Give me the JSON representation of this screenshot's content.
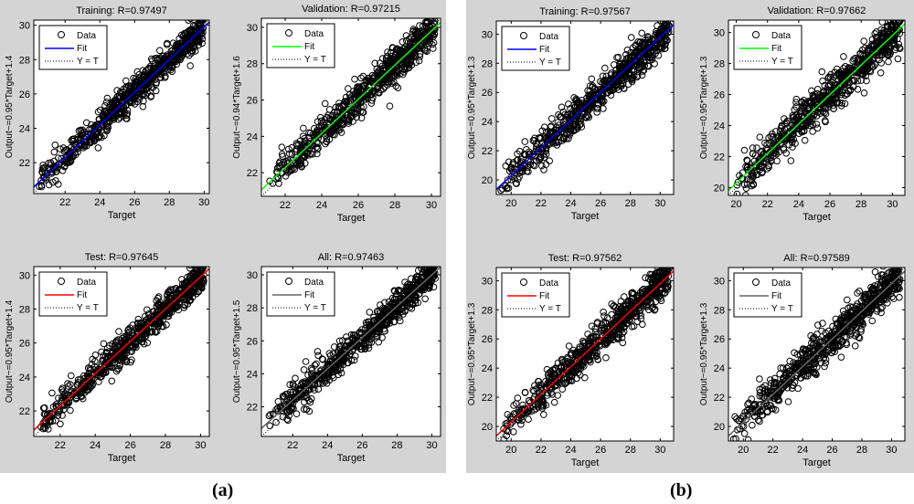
{
  "figure_labels": [
    "(a)",
    "(b)"
  ],
  "chart_data": [
    {
      "group": "(a)",
      "type": "scatter",
      "title": "Training: R=0.97497",
      "xlabel": "Target",
      "ylabel": "Output~=0.95*Target+1.4",
      "fit": {
        "slope": 0.95,
        "intercept": 1.4,
        "color": "#0000ff"
      },
      "R": 0.97497,
      "xlim": [
        20.2,
        30.3
      ],
      "ylim": [
        20.2,
        30.3
      ],
      "xticks": [
        22,
        24,
        26,
        28,
        30
      ],
      "yticks": [
        22,
        24,
        26,
        28,
        30
      ],
      "legend": [
        "Data",
        "Fit",
        "Y = T"
      ],
      "legend_position": "top-left",
      "spread": 0.45
    },
    {
      "group": "(a)",
      "type": "scatter",
      "title": "Validation: R=0.97215",
      "xlabel": "Target",
      "ylabel": "Output~=0.94*Target+1.6",
      "fit": {
        "slope": 0.94,
        "intercept": 1.6,
        "color": "#00ff00"
      },
      "R": 0.97215,
      "xlim": [
        20.7,
        30.5
      ],
      "ylim": [
        20.7,
        30.5
      ],
      "xticks": [
        22,
        24,
        26,
        28,
        30
      ],
      "yticks": [
        22,
        24,
        26,
        28,
        30
      ],
      "legend": [
        "Data",
        "Fit",
        "Y = T"
      ],
      "legend_position": "top-left",
      "spread": 0.45
    },
    {
      "group": "(a)",
      "type": "scatter",
      "title": "Test: R=0.97645",
      "xlabel": "Target",
      "ylabel": "Output~=0.95*Target+1.4",
      "fit": {
        "slope": 0.95,
        "intercept": 1.4,
        "color": "#ff0000"
      },
      "R": 0.97645,
      "xlim": [
        20.5,
        30.5
      ],
      "ylim": [
        20.5,
        30.5
      ],
      "xticks": [
        22,
        24,
        26,
        28,
        30
      ],
      "yticks": [
        22,
        24,
        26,
        28,
        30
      ],
      "legend": [
        "Data",
        "Fit",
        "Y = T"
      ],
      "legend_position": "top-left",
      "spread": 0.45
    },
    {
      "group": "(a)",
      "type": "scatter",
      "title": "All: R=0.97463",
      "xlabel": "Target",
      "ylabel": "Output~=0.95*Target+1.5",
      "fit": {
        "slope": 0.95,
        "intercept": 1.5,
        "color": "#666666"
      },
      "R": 0.97463,
      "xlim": [
        20.2,
        30.5
      ],
      "ylim": [
        20.2,
        30.5
      ],
      "xticks": [
        22,
        24,
        26,
        28,
        30
      ],
      "yticks": [
        22,
        24,
        26,
        28,
        30
      ],
      "legend": [
        "Data",
        "Fit",
        "Y = T"
      ],
      "legend_position": "top-left",
      "spread": 0.45
    },
    {
      "group": "(b)",
      "type": "scatter",
      "title": "Training: R=0.97567",
      "xlabel": "Target",
      "ylabel": "Output~=0.95*Target+1.3",
      "fit": {
        "slope": 0.95,
        "intercept": 1.3,
        "color": "#0000ff"
      },
      "R": 0.97567,
      "xlim": [
        19,
        30.9
      ],
      "ylim": [
        19,
        30.9
      ],
      "xticks": [
        20,
        22,
        24,
        26,
        28,
        30
      ],
      "yticks": [
        20,
        22,
        24,
        26,
        28,
        30
      ],
      "legend": [
        "Data",
        "Fit",
        "Y = T"
      ],
      "legend_position": "top-left",
      "spread": 0.6
    },
    {
      "group": "(b)",
      "type": "scatter",
      "title": "Validation: R=0.97662",
      "xlabel": "Target",
      "ylabel": "Output~=0.95*Target+1.3",
      "fit": {
        "slope": 0.95,
        "intercept": 1.3,
        "color": "#00ff00"
      },
      "R": 0.97662,
      "xlim": [
        19.5,
        30.8
      ],
      "ylim": [
        19.5,
        30.8
      ],
      "xticks": [
        20,
        22,
        24,
        26,
        28,
        30
      ],
      "yticks": [
        20,
        22,
        24,
        26,
        28,
        30
      ],
      "legend": [
        "Data",
        "Fit",
        "Y = T"
      ],
      "legend_position": "top-left",
      "spread": 0.6
    },
    {
      "group": "(b)",
      "type": "scatter",
      "title": "Test: R=0.97562",
      "xlabel": "Target",
      "ylabel": "Output~=0.95*Target+1.3",
      "fit": {
        "slope": 0.95,
        "intercept": 1.3,
        "color": "#ff0000"
      },
      "R": 0.97562,
      "xlim": [
        19,
        30.9
      ],
      "ylim": [
        19,
        30.9
      ],
      "xticks": [
        20,
        22,
        24,
        26,
        28,
        30
      ],
      "yticks": [
        20,
        22,
        24,
        26,
        28,
        30
      ],
      "legend": [
        "Data",
        "Fit",
        "Y = T"
      ],
      "legend_position": "top-left",
      "spread": 0.6
    },
    {
      "group": "(b)",
      "type": "scatter",
      "title": "All: R=0.97589",
      "xlabel": "Target",
      "ylabel": "Output~=0.95*Target+1.3",
      "fit": {
        "slope": 0.95,
        "intercept": 1.3,
        "color": "#666666"
      },
      "R": 0.97589,
      "xlim": [
        19,
        30.9
      ],
      "ylim": [
        19,
        30.9
      ],
      "xticks": [
        20,
        22,
        24,
        26,
        28,
        30
      ],
      "yticks": [
        20,
        22,
        24,
        26,
        28,
        30
      ],
      "legend": [
        "Data",
        "Fit",
        "Y = T"
      ],
      "legend_position": "top-left",
      "spread": 0.6
    }
  ]
}
